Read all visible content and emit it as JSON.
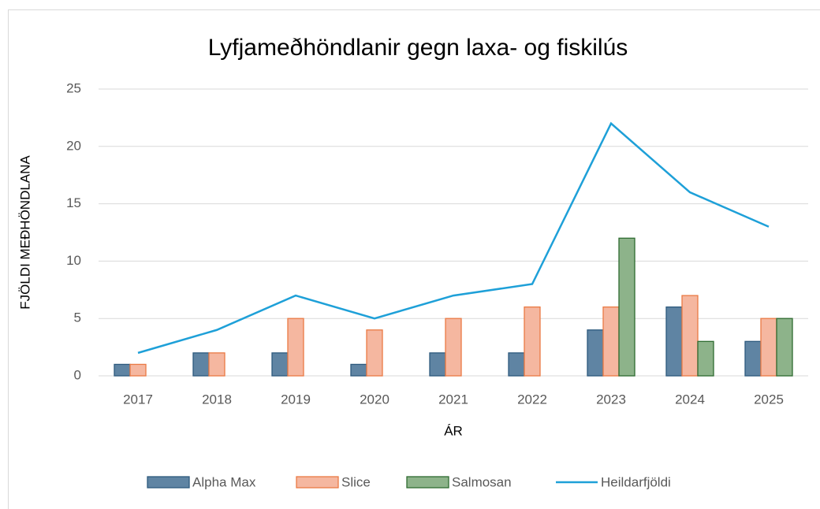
{
  "chart_data": {
    "type": "bar",
    "title": "Lyfjameðhöndlanir gegn laxa- og fiskilús",
    "xlabel": "ÁR",
    "ylabel": "FJÖLDI MEÐHÖNDLANA",
    "categories": [
      "2017",
      "2018",
      "2019",
      "2020",
      "2021",
      "2022",
      "2023",
      "2024",
      "2025"
    ],
    "series": [
      {
        "name": "Alpha Max",
        "type": "bar",
        "color": "#5f84a3",
        "stroke": "#2e5a7e",
        "values": [
          1,
          2,
          2,
          1,
          2,
          2,
          4,
          6,
          3
        ]
      },
      {
        "name": "Slice",
        "type": "bar",
        "color": "#f5b7a0",
        "stroke": "#ea7a44",
        "values": [
          1,
          2,
          5,
          4,
          5,
          6,
          6,
          7,
          5
        ]
      },
      {
        "name": "Salmosan",
        "type": "bar",
        "color": "#8db38a",
        "stroke": "#2e6b30",
        "values": [
          null,
          null,
          null,
          null,
          null,
          null,
          12,
          3,
          5
        ]
      },
      {
        "name": "Heildarfjöldi",
        "type": "line",
        "color": "#1ea0d8",
        "values": [
          2,
          4,
          7,
          5,
          7,
          8,
          22,
          16,
          13
        ]
      }
    ],
    "ylim": [
      0,
      25
    ],
    "yticks": [
      0,
      5,
      10,
      15,
      20,
      25
    ],
    "grid": true,
    "legend": "bottom"
  }
}
